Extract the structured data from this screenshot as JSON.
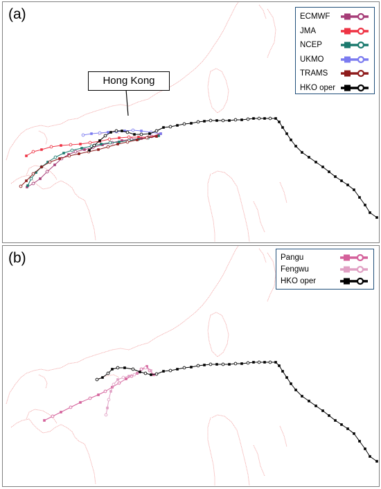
{
  "panel_a": {
    "label": "(a)",
    "callout": "Hong Kong",
    "legend": [
      {
        "name": "ECMWF",
        "color": "#a63d78"
      },
      {
        "name": "JMA",
        "color": "#ee3344"
      },
      {
        "name": "NCEP",
        "color": "#1b7a6e"
      },
      {
        "name": "UKMO",
        "color": "#7b7bf0"
      },
      {
        "name": "TRAMS",
        "color": "#8e1b1b"
      },
      {
        "name": "HKO oper",
        "color": "#000000"
      }
    ]
  },
  "panel_b": {
    "label": "(b)",
    "legend": [
      {
        "name": "Pangu",
        "color": "#d4609a"
      },
      {
        "name": "Fengwu",
        "color": "#e0a0c4"
      },
      {
        "name": "HKO oper",
        "color": "#000000"
      }
    ]
  },
  "colors": {
    "coastline": "#f2a6a6",
    "panel_border": "#7f7f7f",
    "legend_border": "#1f4e79"
  }
}
